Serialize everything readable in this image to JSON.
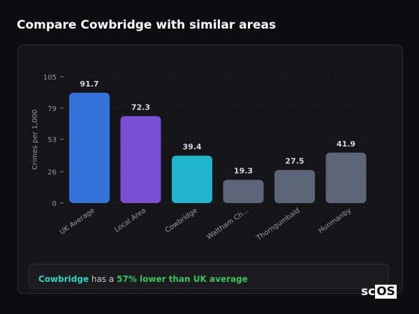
{
  "header": {
    "title": "Compare Cowbridge with similar areas"
  },
  "chart_data": {
    "type": "bar",
    "ylabel": "Crimes per 1,000",
    "ylim": [
      0,
      105
    ],
    "yticks": [
      0,
      26,
      53,
      79,
      105
    ],
    "grid": true,
    "categories": [
      "UK Average",
      "Local Area",
      "Cowbridge",
      "Waltham Ch...",
      "Thorngumbald",
      "Hunmanby"
    ],
    "values": [
      91.7,
      72.3,
      39.4,
      19.3,
      27.5,
      41.9
    ],
    "colors": [
      "#3572d8",
      "#7b4fd4",
      "#1fb5cc",
      "#5c6679",
      "#5c6679",
      "#5c6679"
    ]
  },
  "summary": {
    "place": "Cowbridge",
    "middle": " has a ",
    "highlight": "57% lower than UK average"
  },
  "logo": {
    "a": "sc",
    "b": "OS"
  }
}
